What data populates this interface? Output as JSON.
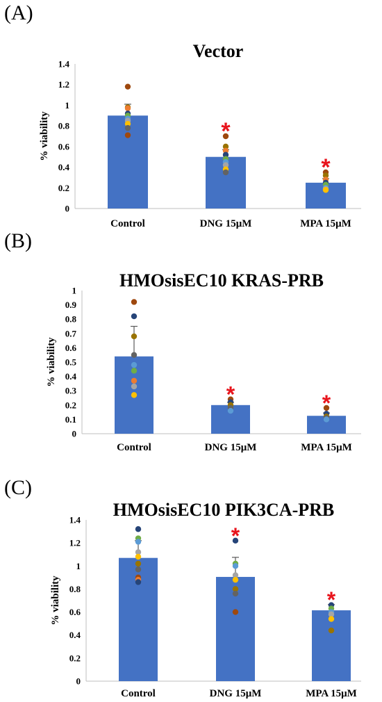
{
  "panels": [
    {
      "label": "(A)"
    },
    {
      "label": "(B)"
    },
    {
      "label": "(C)"
    }
  ],
  "chart_data": [
    {
      "type": "bar",
      "title": "Vector",
      "ylabel": "% viability",
      "categories": [
        "Control",
        "DNG 15μM",
        "MPA 15μM"
      ],
      "values": [
        0.9,
        0.5,
        0.25
      ],
      "errors": [
        0.11,
        0.07,
        0.04
      ],
      "ylim": [
        0,
        1.4
      ],
      "yticks": [
        0,
        0.2,
        0.4,
        0.6,
        0.8,
        1,
        1.2,
        1.4
      ],
      "ytick_labels": [
        "0",
        "0.2",
        "0.4",
        "0.6",
        "0.8",
        "1",
        "1.2",
        "1.4"
      ],
      "significant": [
        false,
        true,
        true
      ],
      "significance_marker": "*",
      "bar_color": "#4472c4",
      "point_colors": [
        "#9e480e",
        "#997300",
        "#ed7d31",
        "#264478",
        "#70ad47",
        "#5b9bd5",
        "#a5a5a5",
        "#ffc000",
        "#636363"
      ],
      "points": [
        [
          1.18,
          0.98,
          0.97,
          0.92,
          0.9,
          0.87,
          0.85,
          0.82,
          0.78,
          0.71
        ],
        [
          0.7,
          0.6,
          0.56,
          0.52,
          0.48,
          0.45,
          0.42,
          0.38,
          0.35
        ],
        [
          0.35,
          0.32,
          0.28,
          0.25,
          0.23,
          0.2,
          0.19,
          0.18
        ]
      ],
      "grid": false
    },
    {
      "type": "bar",
      "title": "HMOsisEC10 KRAS-PRB",
      "ylabel": "% viability",
      "categories": [
        "Control",
        "DNG 15μM",
        "MPA 15μM"
      ],
      "values": [
        0.54,
        0.2,
        0.125
      ],
      "errors": [
        0.21,
        0.02,
        0.02
      ],
      "ylim": [
        0,
        1
      ],
      "yticks": [
        0,
        0.1,
        0.2,
        0.3,
        0.4,
        0.5,
        0.6,
        0.7,
        0.8,
        0.9,
        1
      ],
      "ytick_labels": [
        "0",
        "0.1",
        "0.2",
        "0.3",
        "0.4",
        "0.5",
        "0.6",
        "0.7",
        "0.8",
        "0.9",
        "1"
      ],
      "significant": [
        false,
        true,
        true
      ],
      "significance_marker": "*",
      "bar_color": "#4472c4",
      "point_colors": [
        "#9e480e",
        "#264478",
        "#997300",
        "#636363",
        "#5b9bd5",
        "#70ad47",
        "#ed7d31",
        "#a5a5a5",
        "#ffc000"
      ],
      "points": [
        [
          0.92,
          0.82,
          0.68,
          0.55,
          0.48,
          0.44,
          0.37,
          0.33,
          0.27
        ],
        [
          0.24,
          0.22,
          0.2,
          0.18,
          0.16
        ],
        [
          0.18,
          0.14,
          0.12,
          0.11,
          0.1
        ]
      ],
      "grid": false
    },
    {
      "type": "bar",
      "title": "HMOsisEC10 PIK3CA-PRB",
      "ylabel": "% viability",
      "categories": [
        "Control",
        "DNG 15μM",
        "MPA 15μM"
      ],
      "values": [
        1.07,
        0.905,
        0.615
      ],
      "errors": [
        0.15,
        0.17,
        0.05
      ],
      "ylim": [
        0,
        1.4
      ],
      "yticks": [
        0,
        0.2,
        0.4,
        0.6,
        0.8,
        1,
        1.2,
        1.4
      ],
      "ytick_labels": [
        "0",
        "0.2",
        "0.4",
        "0.6",
        "0.8",
        "1",
        "1.2",
        "1.4"
      ],
      "significant": [
        false,
        true,
        true
      ],
      "significance_marker": "*",
      "bar_color": "#4472c4",
      "point_colors": [
        "#264478",
        "#70ad47",
        "#5b9bd5",
        "#a5a5a5",
        "#ffc000",
        "#997300",
        "#636363",
        "#9e480e",
        "#ed7d31"
      ],
      "points": [
        [
          1.32,
          1.24,
          1.21,
          1.12,
          1.08,
          1.02,
          0.97,
          0.9,
          0.88,
          0.86
        ],
        [
          1.22,
          1.02,
          1.0,
          0.92,
          0.88,
          0.8,
          0.76,
          0.6
        ],
        [
          0.66,
          0.63,
          0.6,
          0.58,
          0.54,
          0.44
        ]
      ],
      "grid": false
    }
  ]
}
